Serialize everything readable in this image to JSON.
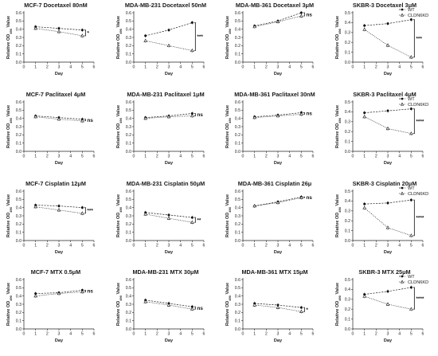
{
  "figure": {
    "x_label": "Day",
    "y_label_prefix": "Relative OD",
    "y_label_subscript": "490",
    "y_label_suffix": " Value",
    "legend": [
      "WT",
      "CLDN6KD"
    ],
    "x_ticks": [
      "0",
      "1",
      "2",
      "3",
      "4",
      "5",
      "6"
    ],
    "y_ticks": [
      "0.0",
      "0.1",
      "0.2",
      "0.3",
      "0.4",
      "0.5",
      "0.6"
    ]
  },
  "chart_data": [
    {
      "type": "line",
      "title": "MCF-7 Docetaxel 80nM",
      "xlabel": "Day",
      "ylabel": "Relative OD490 Value",
      "x": [
        1,
        3,
        5
      ],
      "xlim": [
        0,
        6
      ],
      "ylim": [
        0,
        0.6
      ],
      "significance": "*",
      "series": [
        {
          "name": "WT",
          "values": [
            0.43,
            0.41,
            0.39
          ]
        },
        {
          "name": "CLDN6KD",
          "values": [
            0.41,
            0.37,
            0.32
          ]
        }
      ]
    },
    {
      "type": "line",
      "title": "MDA-MB-231 Docetaxel 50nM",
      "xlabel": "Day",
      "ylabel": "Relative OD490 Value",
      "x": [
        1,
        3,
        5
      ],
      "xlim": [
        0,
        6
      ],
      "ylim": [
        0,
        0.6
      ],
      "significance": "***",
      "series": [
        {
          "name": "WT",
          "values": [
            0.32,
            0.39,
            0.48
          ]
        },
        {
          "name": "CLDN6KD",
          "values": [
            0.26,
            0.2,
            0.14
          ]
        }
      ]
    },
    {
      "type": "line",
      "title": "MDA-MB-361 Docetaxel 3μM",
      "xlabel": "Day",
      "ylabel": "Relative OD490 Value",
      "x": [
        1,
        3,
        5
      ],
      "xlim": [
        0,
        6
      ],
      "ylim": [
        0,
        0.6
      ],
      "significance": "ns",
      "series": [
        {
          "name": "WT",
          "values": [
            0.44,
            0.5,
            0.6
          ]
        },
        {
          "name": "CLDN6KD",
          "values": [
            0.43,
            0.49,
            0.56
          ]
        }
      ]
    },
    {
      "type": "line",
      "title": "SKBR-3 Docetaxel 3μM",
      "xlabel": "Day",
      "ylabel": "Relative OD490 Value",
      "x": [
        1,
        3,
        5
      ],
      "xlim": [
        0,
        6
      ],
      "ylim": [
        0,
        0.5
      ],
      "significance": "***",
      "legend": true,
      "series": [
        {
          "name": "WT",
          "values": [
            0.37,
            0.39,
            0.43
          ]
        },
        {
          "name": "CLDN6KD",
          "values": [
            0.33,
            0.17,
            0.05
          ]
        }
      ]
    },
    {
      "type": "line",
      "title": "MCF-7 Paclitaxel 4μM",
      "xlabel": "Day",
      "ylabel": "Relative OD490 Value",
      "x": [
        1,
        3,
        5
      ],
      "xlim": [
        0,
        6
      ],
      "ylim": [
        0,
        0.6
      ],
      "significance": "ns",
      "series": [
        {
          "name": "WT",
          "values": [
            0.43,
            0.41,
            0.39
          ]
        },
        {
          "name": "CLDN6KD",
          "values": [
            0.42,
            0.39,
            0.37
          ]
        }
      ]
    },
    {
      "type": "line",
      "title": "MDA-MB-231 Paclitaxel 1μM",
      "xlabel": "Day",
      "ylabel": "Relative OD490 Value",
      "x": [
        1,
        3,
        5
      ],
      "xlim": [
        0,
        6
      ],
      "ylim": [
        0,
        0.6
      ],
      "significance": "ns",
      "series": [
        {
          "name": "WT",
          "values": [
            0.41,
            0.43,
            0.46
          ]
        },
        {
          "name": "CLDN6KD",
          "values": [
            0.4,
            0.42,
            0.43
          ]
        }
      ]
    },
    {
      "type": "line",
      "title": "MDA-MB-361 Paclitaxel 30nM",
      "xlabel": "Day",
      "ylabel": "Relative OD490 Value",
      "x": [
        1,
        3,
        5
      ],
      "xlim": [
        0,
        6
      ],
      "ylim": [
        0,
        0.6
      ],
      "significance": "ns",
      "series": [
        {
          "name": "WT",
          "values": [
            0.42,
            0.44,
            0.47
          ]
        },
        {
          "name": "CLDN6KD",
          "values": [
            0.41,
            0.43,
            0.45
          ]
        }
      ]
    },
    {
      "type": "line",
      "title": "SKBR-3 Paclitaxel 4μM",
      "xlabel": "Day",
      "ylabel": "Relative OD490 Value",
      "x": [
        1,
        3,
        5
      ],
      "xlim": [
        0,
        6
      ],
      "ylim": [
        0,
        0.5
      ],
      "significance": "****",
      "legend": true,
      "series": [
        {
          "name": "WT",
          "values": [
            0.39,
            0.41,
            0.43
          ]
        },
        {
          "name": "CLDN6KD",
          "values": [
            0.35,
            0.23,
            0.18
          ]
        }
      ]
    },
    {
      "type": "line",
      "title": "MCF-7 Cisplatin 12μM",
      "xlabel": "Day",
      "ylabel": "Relative OD490 Value",
      "x": [
        1,
        3,
        5
      ],
      "xlim": [
        0,
        6
      ],
      "ylim": [
        0,
        0.6
      ],
      "significance": "***",
      "series": [
        {
          "name": "WT",
          "values": [
            0.43,
            0.42,
            0.4
          ]
        },
        {
          "name": "CLDN6KD",
          "values": [
            0.41,
            0.37,
            0.33
          ]
        }
      ]
    },
    {
      "type": "line",
      "title": "MDA-MB-231 Cisplatin 50μM",
      "xlabel": "Day",
      "ylabel": "Relative OD490 Value",
      "x": [
        1,
        3,
        5
      ],
      "xlim": [
        0,
        6
      ],
      "ylim": [
        0,
        0.6
      ],
      "significance": "**",
      "series": [
        {
          "name": "WT",
          "values": [
            0.34,
            0.31,
            0.28
          ]
        },
        {
          "name": "CLDN6KD",
          "values": [
            0.32,
            0.27,
            0.22
          ]
        }
      ]
    },
    {
      "type": "line",
      "title": "MDA-MB-361 Cisplatin 26μ",
      "xlabel": "Day",
      "ylabel": "Relative OD490 Value",
      "x": [
        1,
        3,
        5
      ],
      "xlim": [
        0,
        6
      ],
      "ylim": [
        0,
        0.6
      ],
      "significance": "ns",
      "series": [
        {
          "name": "WT",
          "values": [
            0.42,
            0.47,
            0.53
          ]
        },
        {
          "name": "CLDN6KD",
          "values": [
            0.42,
            0.46,
            0.52
          ]
        }
      ]
    },
    {
      "type": "line",
      "title": "SKBR-3 Cisplatin 20μM",
      "xlabel": "Day",
      "ylabel": "Relative OD490 Value",
      "x": [
        1,
        3,
        5
      ],
      "xlim": [
        0,
        6
      ],
      "ylim": [
        0,
        0.5
      ],
      "significance": "****",
      "legend": true,
      "series": [
        {
          "name": "WT",
          "values": [
            0.37,
            0.38,
            0.41
          ]
        },
        {
          "name": "CLDN6KD",
          "values": [
            0.33,
            0.13,
            0.05
          ]
        }
      ]
    },
    {
      "type": "line",
      "title": "MCF-7 MTX 0.5μM",
      "xlabel": "Day",
      "ylabel": "Relative OD490 Value",
      "x": [
        1,
        3,
        5
      ],
      "xlim": [
        0,
        6
      ],
      "ylim": [
        0,
        0.6
      ],
      "significance": "ns",
      "series": [
        {
          "name": "WT",
          "values": [
            0.43,
            0.44,
            0.47
          ]
        },
        {
          "name": "CLDN6KD",
          "values": [
            0.4,
            0.43,
            0.45
          ]
        }
      ]
    },
    {
      "type": "line",
      "title": "MDA-MB-231 MTX 30μM",
      "xlabel": "Day",
      "ylabel": "Relative OD490 Value",
      "x": [
        1,
        3,
        5
      ],
      "xlim": [
        0,
        6
      ],
      "ylim": [
        0,
        0.6
      ],
      "significance": "ns",
      "series": [
        {
          "name": "WT",
          "values": [
            0.35,
            0.31,
            0.27
          ]
        },
        {
          "name": "CLDN6KD",
          "values": [
            0.33,
            0.29,
            0.24
          ]
        }
      ]
    },
    {
      "type": "line",
      "title": "MDA-MB-361 MTX 15μM",
      "xlabel": "Day",
      "ylabel": "Relative OD490 Value",
      "x": [
        1,
        3,
        5
      ],
      "xlim": [
        0,
        6
      ],
      "ylim": [
        0,
        0.6
      ],
      "significance": "*",
      "series": [
        {
          "name": "WT",
          "values": [
            0.31,
            0.29,
            0.26
          ]
        },
        {
          "name": "CLDN6KD",
          "values": [
            0.29,
            0.26,
            0.21
          ]
        }
      ]
    },
    {
      "type": "line",
      "title": "SKBR-3 MTX 25μM",
      "xlabel": "Day",
      "ylabel": "Relative OD490 Value",
      "x": [
        1,
        3,
        5
      ],
      "xlim": [
        0,
        6
      ],
      "ylim": [
        0,
        0.5
      ],
      "significance": "****",
      "legend": true,
      "series": [
        {
          "name": "WT",
          "values": [
            0.35,
            0.38,
            0.42
          ]
        },
        {
          "name": "CLDN6KD",
          "values": [
            0.33,
            0.25,
            0.2
          ]
        }
      ]
    }
  ]
}
